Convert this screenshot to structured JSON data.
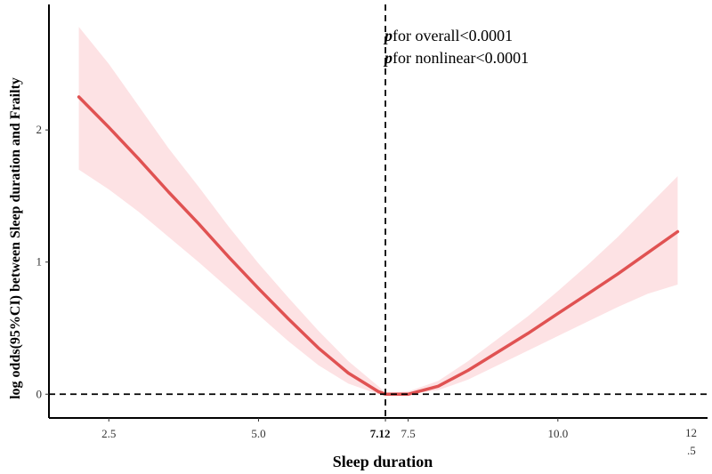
{
  "chart_data": {
    "type": "line",
    "xlabel": "Sleep duration",
    "ylabel": "log odds(95%CI) between Sleep duration and Frailty",
    "xlim": [
      1.5,
      12.5
    ],
    "ylim": [
      -0.18,
      2.95
    ],
    "x_ticks": [
      {
        "value": 2.5,
        "label": "2.5"
      },
      {
        "value": 5.0,
        "label": "5.0"
      },
      {
        "value": 7.12,
        "label": "7.12"
      },
      {
        "value": 7.5,
        "label": "7.5"
      },
      {
        "value": 10.0,
        "label": "10.0"
      }
    ],
    "x_tick_edge": {
      "line1": "12",
      "line2": ".5"
    },
    "y_ticks": [
      {
        "value": 0,
        "label": "0"
      },
      {
        "value": 1,
        "label": "1"
      },
      {
        "value": 2,
        "label": "2"
      }
    ],
    "reference_lines": {
      "vertical_x": 7.12,
      "horizontal_y": 0
    },
    "annotations": [
      {
        "p": "p",
        "text": "for overall<0.0001"
      },
      {
        "p": "p",
        "text": "for nonlinear<0.0001"
      }
    ],
    "series": [
      {
        "x": [
          2.0,
          2.5,
          3.0,
          3.5,
          4.0,
          4.5,
          5.0,
          5.5,
          6.0,
          6.5,
          7.0,
          7.12,
          7.5,
          8.0,
          8.5,
          9.0,
          9.5,
          10.0,
          10.5,
          11.0,
          11.5,
          12.0
        ],
        "y": [
          2.25,
          2.02,
          1.78,
          1.53,
          1.29,
          1.04,
          0.8,
          0.57,
          0.35,
          0.16,
          0.02,
          0.0,
          0.0,
          0.06,
          0.18,
          0.32,
          0.46,
          0.61,
          0.76,
          0.91,
          1.07,
          1.23
        ],
        "lower": [
          1.7,
          1.55,
          1.38,
          1.19,
          1.0,
          0.8,
          0.6,
          0.4,
          0.22,
          0.08,
          0.0,
          0.0,
          0.0,
          0.03,
          0.11,
          0.22,
          0.33,
          0.44,
          0.55,
          0.66,
          0.76,
          0.83
        ],
        "upper": [
          2.78,
          2.5,
          2.18,
          1.86,
          1.57,
          1.27,
          0.99,
          0.73,
          0.48,
          0.25,
          0.06,
          0.01,
          0.02,
          0.1,
          0.25,
          0.42,
          0.59,
          0.78,
          0.98,
          1.19,
          1.42,
          1.65
        ]
      }
    ],
    "colors": {
      "line": "#e05252",
      "band": "#fde2e4",
      "axis": "#000000"
    },
    "grid": false
  }
}
